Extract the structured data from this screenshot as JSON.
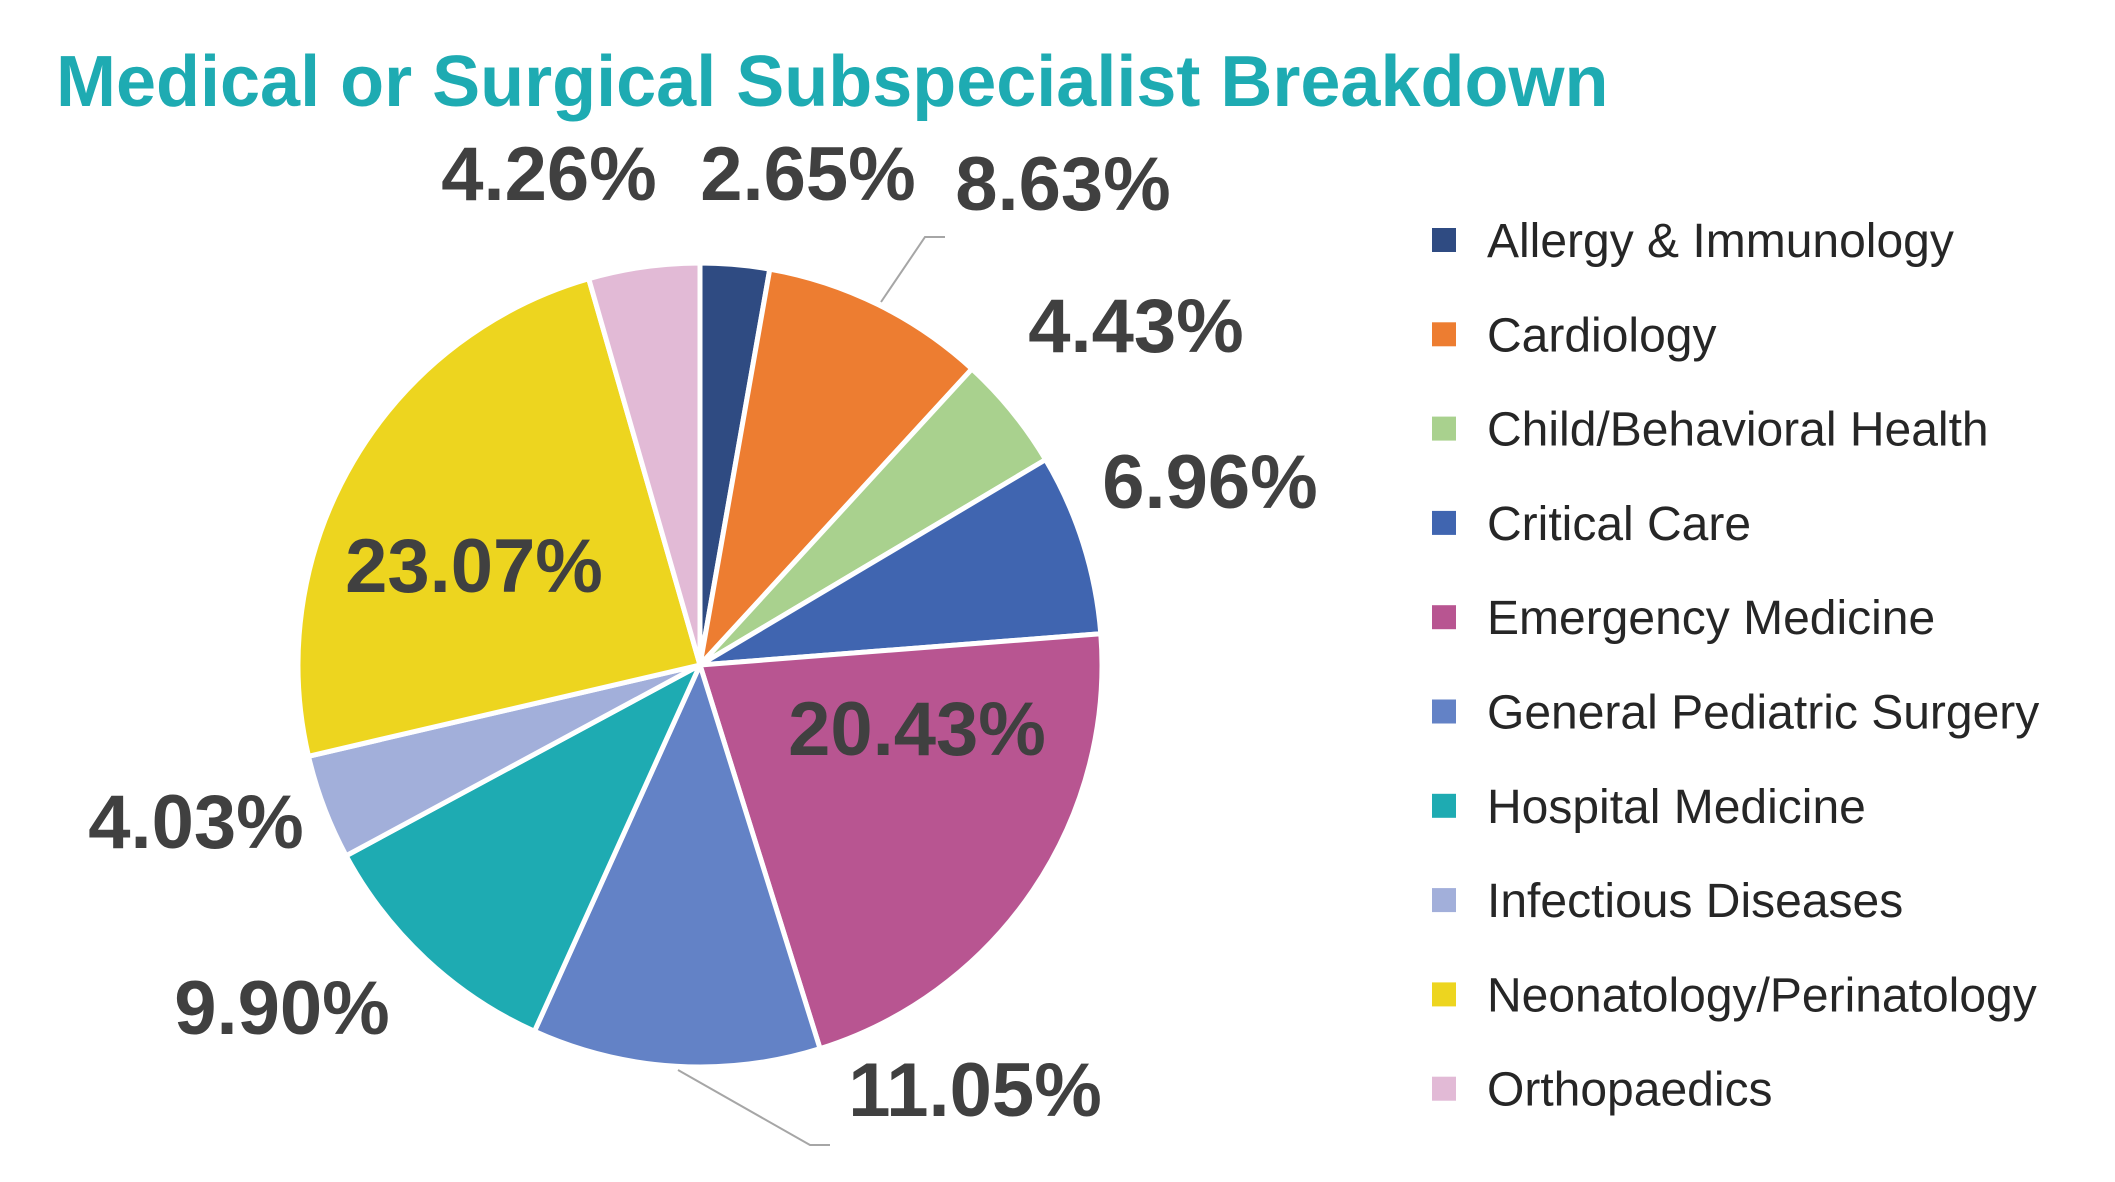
{
  "chart_data": {
    "type": "pie",
    "title": "Medical or Surgical Subspecialist Breakdown",
    "legend_position": "right",
    "slices": [
      {
        "label": "Allergy & Immunology",
        "value": 2.65,
        "value_label": "2.65%",
        "color": "#2F4B82"
      },
      {
        "label": "Cardiology",
        "value": 8.63,
        "value_label": "8.63%",
        "color": "#ED7D31"
      },
      {
        "label": "Child/Behavioral Health",
        "value": 4.43,
        "value_label": "4.43%",
        "color": "#A9D18E"
      },
      {
        "label": "Critical Care",
        "value": 6.96,
        "value_label": "6.96%",
        "color": "#4065B0"
      },
      {
        "label": "Emergency Medicine",
        "value": 20.43,
        "value_label": "20.43%",
        "color": "#B85591"
      },
      {
        "label": "General Pediatric Surgery",
        "value": 11.05,
        "value_label": "11.05%",
        "color": "#6382C6"
      },
      {
        "label": "Hospital Medicine",
        "value": 9.9,
        "value_label": "9.90%",
        "color": "#1EABB2"
      },
      {
        "label": "Infectious Diseases",
        "value": 4.03,
        "value_label": "4.03%",
        "color": "#A2AFDA"
      },
      {
        "label": "Neonatology/Perinatology",
        "value": 23.07,
        "value_label": "23.07%",
        "color": "#EDD51F"
      },
      {
        "label": "Orthopaedics",
        "value": 4.26,
        "value_label": "4.26%",
        "color": "#E2BAD6"
      }
    ]
  },
  "colors": {
    "title": "#1EABB2",
    "value_labels": "#404040",
    "legend_text": "#262626",
    "leader_lines": "#A6A6A6"
  }
}
